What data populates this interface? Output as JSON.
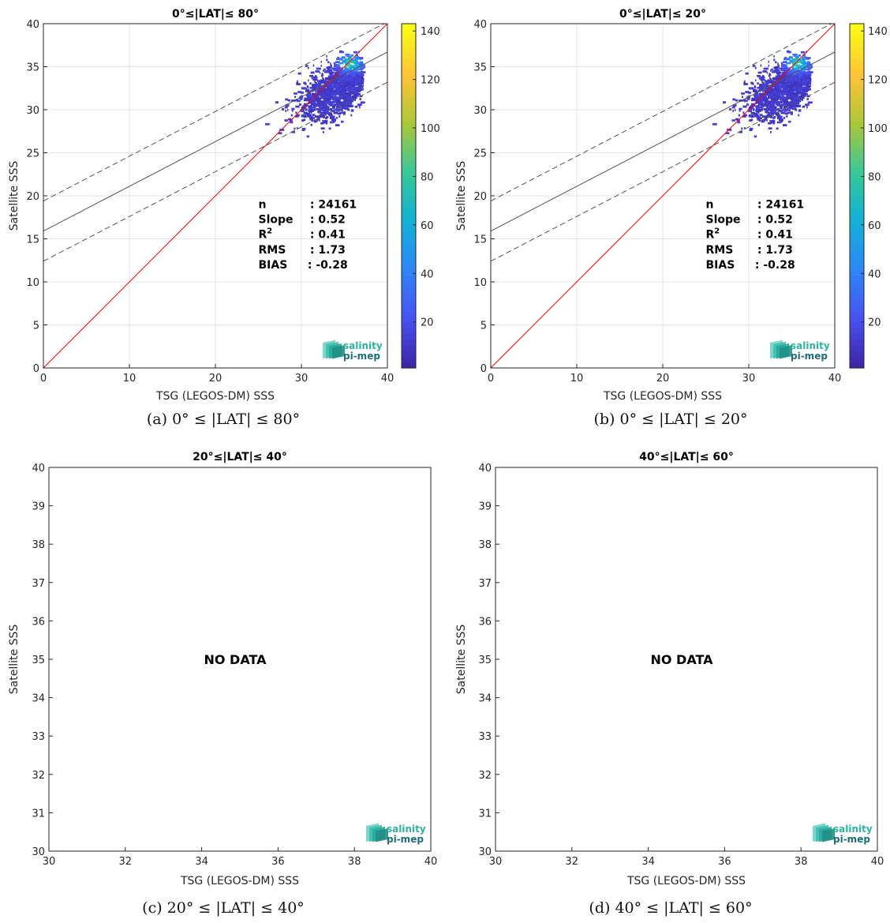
{
  "logo": {
    "line1": "salinity",
    "line2": "pi-mep"
  },
  "chart_data": [
    {
      "type": "heatmap",
      "title": "0°≤|LAT|≤ 80°",
      "caption": "(a) 0° ≤ |LAT| ≤ 80°",
      "xlabel": "TSG (LEGOS-DM) SSS",
      "ylabel": "Satellite SSS",
      "xlim": [
        0,
        40
      ],
      "ylim": [
        0,
        40
      ],
      "xticks": [
        "0",
        "10",
        "20",
        "30",
        "40"
      ],
      "yticks": [
        "0",
        "5",
        "10",
        "15",
        "20",
        "25",
        "30",
        "35",
        "40"
      ],
      "colorbar": {
        "range": [
          1,
          143
        ],
        "ticks": [
          "20",
          "40",
          "60",
          "80",
          "100",
          "120",
          "140"
        ]
      },
      "lines": {
        "identity": {
          "slope": 1,
          "intercept": 0,
          "color": "#ff0000"
        },
        "fit": {
          "slope": 0.52,
          "intercept": 15.9,
          "color": "#555555"
        },
        "fit_upper": {
          "slope": 0.52,
          "intercept": 19.4,
          "dashed": true
        },
        "fit_lower": {
          "slope": 0.52,
          "intercept": 12.4,
          "dashed": true
        }
      },
      "stats": [
        {
          "label": "n",
          "value": ": 24161"
        },
        {
          "label": "Slope",
          "value": ": 0.52"
        },
        {
          "label": "R",
          "sup": "2",
          "value": ": 0.41"
        },
        {
          "label": "RMS",
          "value": ": 1.73"
        },
        {
          "label": "BIAS",
          "value": ": -0.28"
        }
      ],
      "density": {
        "x_range": [
          22,
          37
        ],
        "y_range": [
          27,
          37
        ],
        "peak": [
          35.5,
          35.5
        ]
      }
    },
    {
      "type": "heatmap",
      "title": "0°≤|LAT|≤ 20°",
      "caption": "(b) 0° ≤ |LAT| ≤ 20°",
      "xlabel": "TSG (LEGOS-DM) SSS",
      "ylabel": "Satellite SSS",
      "xlim": [
        0,
        40
      ],
      "ylim": [
        0,
        40
      ],
      "xticks": [
        "0",
        "10",
        "20",
        "30",
        "40"
      ],
      "yticks": [
        "0",
        "5",
        "10",
        "15",
        "20",
        "25",
        "30",
        "35",
        "40"
      ],
      "colorbar": {
        "range": [
          1,
          143
        ],
        "ticks": [
          "20",
          "40",
          "60",
          "80",
          "100",
          "120",
          "140"
        ]
      },
      "lines": {
        "identity": {
          "slope": 1,
          "intercept": 0,
          "color": "#ff0000"
        },
        "fit": {
          "slope": 0.52,
          "intercept": 15.9,
          "color": "#555555"
        },
        "fit_upper": {
          "slope": 0.52,
          "intercept": 19.4,
          "dashed": true
        },
        "fit_lower": {
          "slope": 0.52,
          "intercept": 12.4,
          "dashed": true
        }
      },
      "stats": [
        {
          "label": "n",
          "value": ": 24161"
        },
        {
          "label": "Slope",
          "value": ": 0.52"
        },
        {
          "label": "R",
          "sup": "2",
          "value": ": 0.41"
        },
        {
          "label": "RMS",
          "value": ": 1.73"
        },
        {
          "label": "BIAS",
          "value": ": -0.28"
        }
      ],
      "density": {
        "x_range": [
          22,
          37
        ],
        "y_range": [
          27,
          37
        ],
        "peak": [
          35.5,
          35.5
        ]
      }
    },
    {
      "type": "scatter",
      "title": "20°≤|LAT|≤ 40°",
      "caption": "(c) 20° ≤ |LAT| ≤ 40°",
      "xlabel": "TSG (LEGOS-DM) SSS",
      "ylabel": "Satellite SSS",
      "xlim": [
        30,
        40
      ],
      "ylim": [
        30,
        40
      ],
      "xticks": [
        "30",
        "32",
        "34",
        "36",
        "38",
        "40"
      ],
      "yticks": [
        "30",
        "31",
        "32",
        "33",
        "34",
        "35",
        "36",
        "37",
        "38",
        "39",
        "40"
      ],
      "annotation": "NO DATA"
    },
    {
      "type": "scatter",
      "title": "40°≤|LAT|≤ 60°",
      "caption": "(d) 40° ≤ |LAT| ≤ 60°",
      "xlabel": "TSG (LEGOS-DM) SSS",
      "ylabel": "Satellite SSS",
      "xlim": [
        30,
        40
      ],
      "ylim": [
        30,
        40
      ],
      "xticks": [
        "30",
        "32",
        "34",
        "36",
        "38",
        "40"
      ],
      "yticks": [
        "30",
        "31",
        "32",
        "33",
        "34",
        "35",
        "36",
        "37",
        "38",
        "39",
        "40"
      ],
      "annotation": "NO DATA"
    }
  ]
}
